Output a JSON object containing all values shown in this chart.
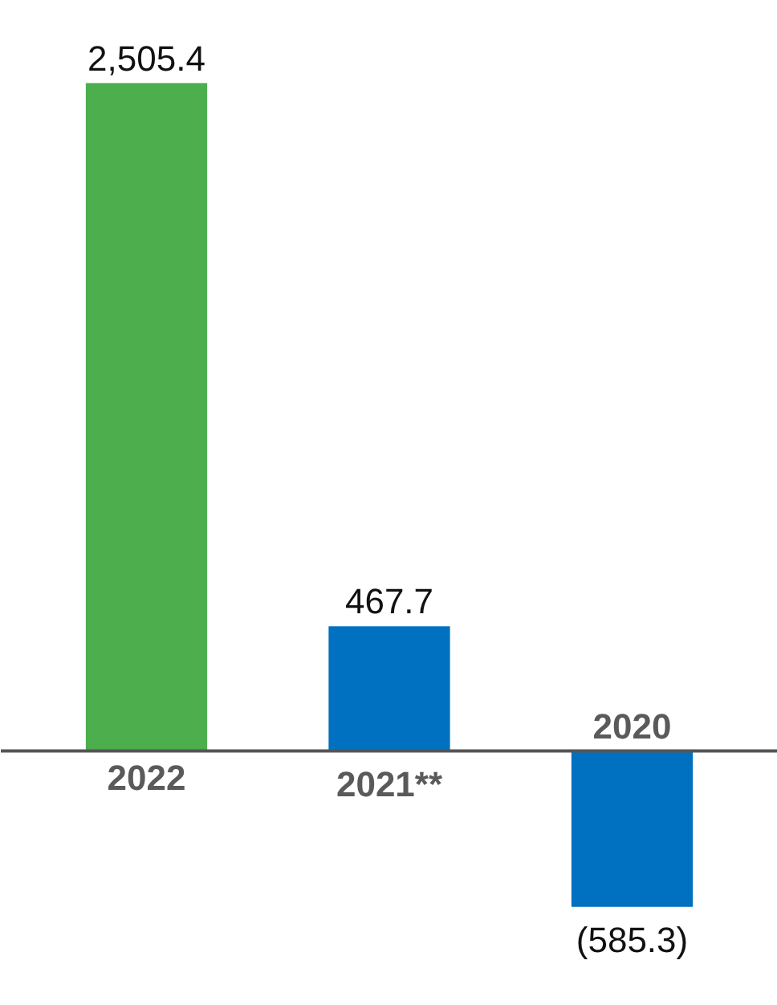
{
  "chart_data": {
    "type": "bar",
    "categories": [
      "2022",
      "2021**",
      "2020"
    ],
    "values": [
      2505.4,
      467.7,
      -585.3
    ],
    "colors": [
      "#4cae4c",
      "#0070c0",
      "#0070c0"
    ],
    "value_labels": [
      "2,505.4",
      "467.7",
      "(585.3)"
    ],
    "grid": false,
    "tick_labels": false
  }
}
